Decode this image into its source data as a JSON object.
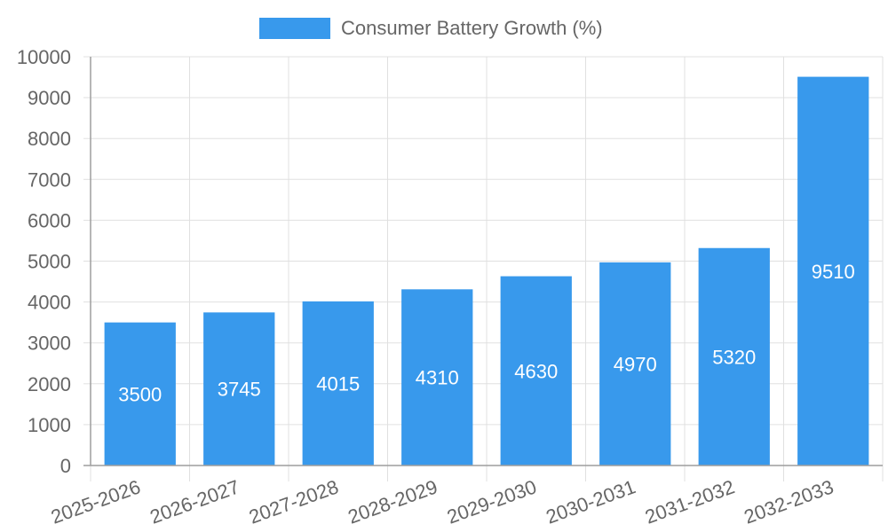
{
  "chart_data": {
    "type": "bar",
    "categories": [
      "2025-2026",
      "2026-2027",
      "2027-2028",
      "2028-2029",
      "2029-2030",
      "2030-2031",
      "2031-2032",
      "2032-2033"
    ],
    "series": [
      {
        "name": "Consumer Battery Growth (%)",
        "values": [
          3500,
          3745,
          4015,
          4310,
          4630,
          4970,
          5320,
          9510
        ]
      }
    ],
    "ylim": [
      0,
      10000
    ],
    "yticks": [
      0,
      1000,
      2000,
      3000,
      4000,
      5000,
      6000,
      7000,
      8000,
      9000,
      10000
    ],
    "grid": true,
    "legend_position": "top-center",
    "colors": {
      "bar": "#3899ec",
      "grid": "#e0e0e0",
      "axis": "#9e9e9e",
      "text": "#666666",
      "label": "#ffffff"
    }
  }
}
